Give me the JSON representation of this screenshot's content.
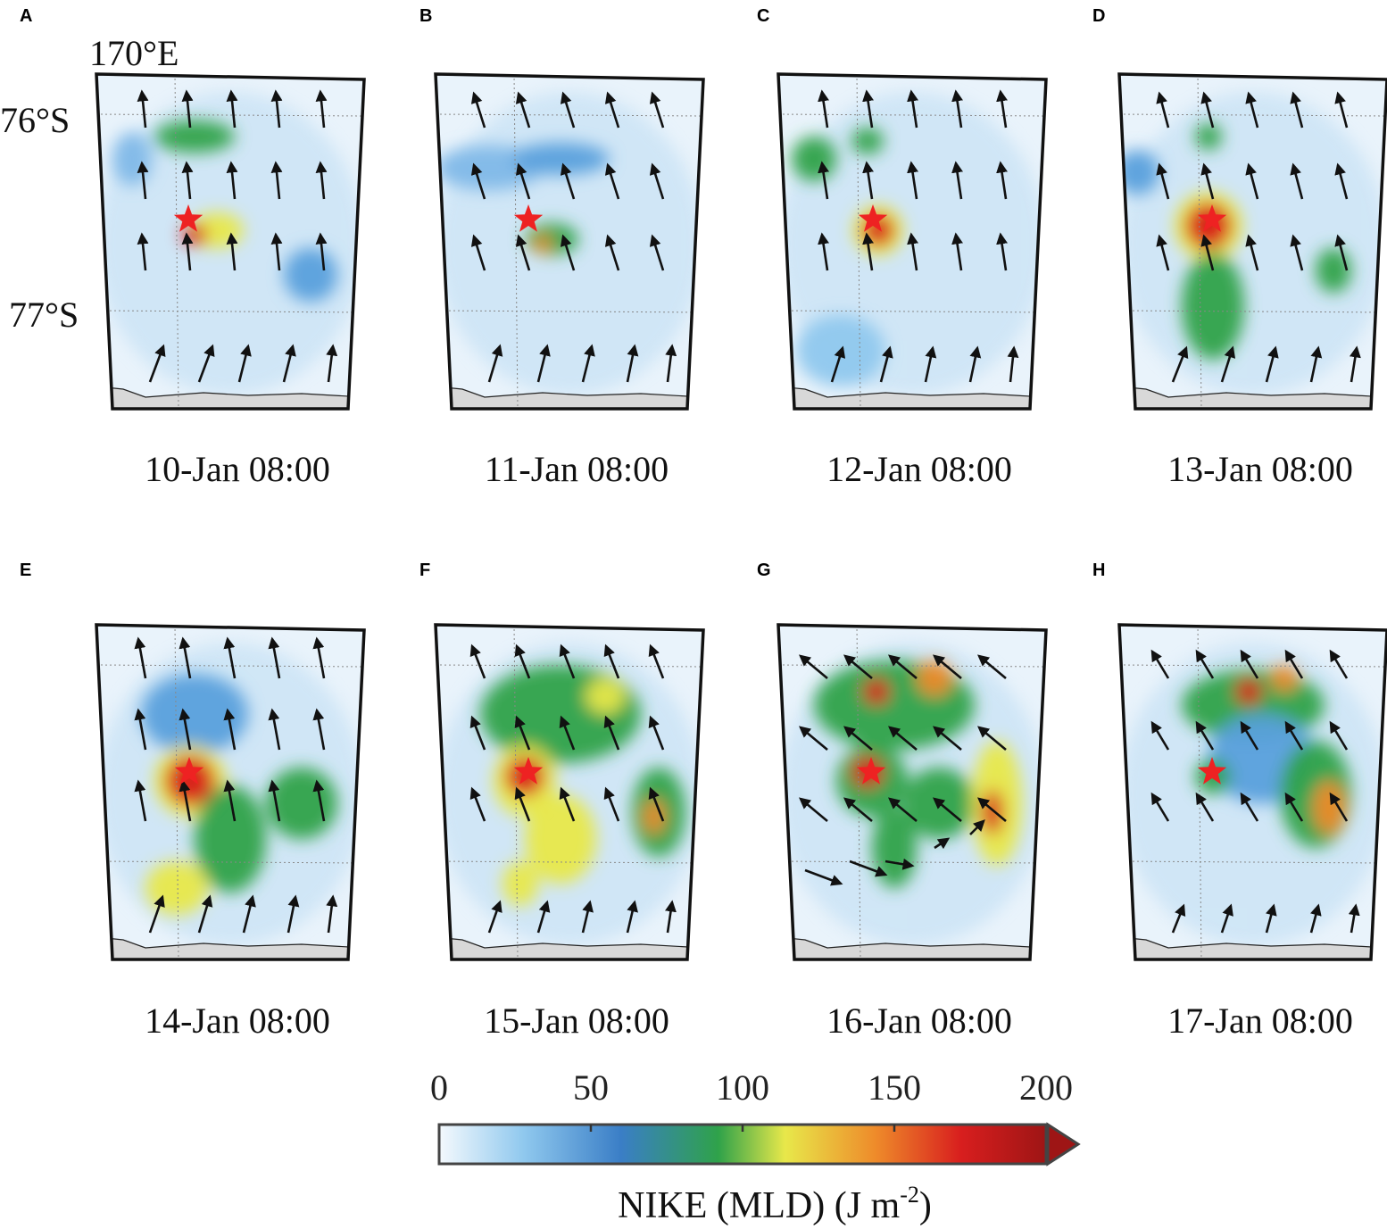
{
  "panels": [
    {
      "letter": "A",
      "date": "10-Jan 08:00"
    },
    {
      "letter": "B",
      "date": "11-Jan 08:00"
    },
    {
      "letter": "C",
      "date": "12-Jan 08:00"
    },
    {
      "letter": "D",
      "date": "13-Jan 08:00"
    },
    {
      "letter": "E",
      "date": "14-Jan 08:00"
    },
    {
      "letter": "F",
      "date": "15-Jan 08:00"
    },
    {
      "letter": "G",
      "date": "16-Jan 08:00"
    },
    {
      "letter": "H",
      "date": "17-Jan 08:00"
    }
  ],
  "axis_labels": {
    "lon": "170°E",
    "lat_top": "76°S",
    "lat_bottom": "77°S"
  },
  "colorbar": {
    "title_main": "NIKE (MLD) (J m",
    "title_exp": "-2",
    "title_close": ")",
    "ticks": [
      "0",
      "50",
      "100",
      "150",
      "200"
    ],
    "range": [
      0,
      200
    ],
    "colors": [
      "#f4f9fd",
      "#8fc8ee",
      "#3a7ec6",
      "#2fa24a",
      "#e8e84a",
      "#ee8a2a",
      "#d81e1e",
      "#9e1515"
    ]
  },
  "colors": {
    "star": "#ee2222",
    "arrow": "#111111",
    "land": "#d8d8d8"
  }
}
